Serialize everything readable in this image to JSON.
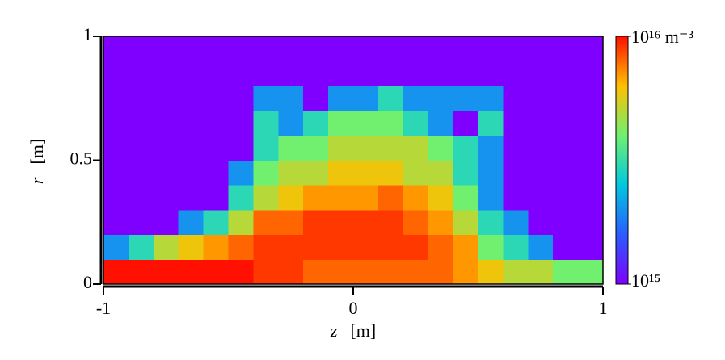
{
  "chart_data": {
    "type": "heatmap",
    "xlabel": {
      "symbol": "z",
      "unit": "[m]"
    },
    "ylabel": {
      "symbol": "r",
      "unit": "[m]"
    },
    "xlim": [
      -1,
      1
    ],
    "xticks": [
      -1,
      0,
      1
    ],
    "ylim": [
      0,
      1
    ],
    "yticks": [
      0,
      0.5,
      1
    ],
    "x": [
      -0.95,
      -0.85,
      -0.75,
      -0.65,
      -0.55,
      -0.45,
      -0.35,
      -0.25,
      -0.15,
      -0.05,
      0.05,
      0.15,
      0.25,
      0.35,
      0.45,
      0.55,
      0.65,
      0.75,
      0.85,
      0.95
    ],
    "y": [
      0.05,
      0.15,
      0.25,
      0.35,
      0.45,
      0.55,
      0.65,
      0.75,
      0.85,
      0.95
    ],
    "z": [
      [
        1e+16,
        1e+16,
        1e+16,
        1e+16,
        1e+16,
        1e+16,
        9000000000000000.0,
        9000000000000000.0,
        8000000000000000.0,
        8000000000000000.0,
        8000000000000000.0,
        8000000000000000.0,
        8000000000000000.0,
        8000000000000000.0,
        7000000000000000.0,
        6000000000000000.0,
        5000000000000000.0,
        5000000000000000.0,
        4000000000000000.0,
        4000000000000000.0
      ],
      [
        2000000000000000.0,
        3000000000000000.0,
        5000000000000000.0,
        6000000000000000.0,
        7000000000000000.0,
        8000000000000000.0,
        9000000000000000.0,
        9000000000000000.0,
        9000000000000000.0,
        9000000000000000.0,
        9000000000000000.0,
        9000000000000000.0,
        9000000000000000.0,
        8000000000000000.0,
        7000000000000000.0,
        4000000000000000.0,
        3000000000000000.0,
        2000000000000000.0,
        1000000000000000.0,
        1000000000000000.0
      ],
      [
        1000000000000000.0,
        1000000000000000.0,
        1000000000000000.0,
        2000000000000000.0,
        3000000000000000.0,
        5000000000000000.0,
        8000000000000000.0,
        8000000000000000.0,
        9000000000000000.0,
        9000000000000000.0,
        9000000000000000.0,
        9000000000000000.0,
        8000000000000000.0,
        7000000000000000.0,
        5000000000000000.0,
        3000000000000000.0,
        2000000000000000.0,
        1000000000000000.0,
        1000000000000000.0,
        1000000000000000.0
      ],
      [
        1000000000000000.0,
        1000000000000000.0,
        1000000000000000.0,
        1000000000000000.0,
        1000000000000000.0,
        3000000000000000.0,
        5000000000000000.0,
        6000000000000000.0,
        7000000000000000.0,
        7000000000000000.0,
        7000000000000000.0,
        8000000000000000.0,
        7000000000000000.0,
        6000000000000000.0,
        4000000000000000.0,
        2000000000000000.0,
        1000000000000000.0,
        1000000000000000.0,
        1000000000000000.0,
        1000000000000000.0
      ],
      [
        1000000000000000.0,
        1000000000000000.0,
        1000000000000000.0,
        1000000000000000.0,
        1000000000000000.0,
        2000000000000000.0,
        4000000000000000.0,
        5000000000000000.0,
        5000000000000000.0,
        6000000000000000.0,
        6000000000000000.0,
        6000000000000000.0,
        5000000000000000.0,
        5000000000000000.0,
        3000000000000000.0,
        2000000000000000.0,
        1000000000000000.0,
        1000000000000000.0,
        1000000000000000.0,
        1000000000000000.0
      ],
      [
        1000000000000000.0,
        1000000000000000.0,
        1000000000000000.0,
        1000000000000000.0,
        1000000000000000.0,
        1000000000000000.0,
        3000000000000000.0,
        4000000000000000.0,
        4000000000000000.0,
        5000000000000000.0,
        5000000000000000.0,
        5000000000000000.0,
        5000000000000000.0,
        4000000000000000.0,
        3000000000000000.0,
        2000000000000000.0,
        1000000000000000.0,
        1000000000000000.0,
        1000000000000000.0,
        1000000000000000.0
      ],
      [
        1000000000000000.0,
        1000000000000000.0,
        1000000000000000.0,
        1000000000000000.0,
        1000000000000000.0,
        1000000000000000.0,
        3000000000000000.0,
        2000000000000000.0,
        3000000000000000.0,
        4000000000000000.0,
        4000000000000000.0,
        4000000000000000.0,
        3000000000000000.0,
        2000000000000000.0,
        1000000000000000.0,
        3000000000000000.0,
        1000000000000000.0,
        1000000000000000.0,
        1000000000000000.0,
        1000000000000000.0
      ],
      [
        1000000000000000.0,
        1000000000000000.0,
        1000000000000000.0,
        1000000000000000.0,
        1000000000000000.0,
        1000000000000000.0,
        2000000000000000.0,
        2000000000000000.0,
        1000000000000000.0,
        2000000000000000.0,
        2000000000000000.0,
        3000000000000000.0,
        2000000000000000.0,
        2000000000000000.0,
        2000000000000000.0,
        2000000000000000.0,
        1000000000000000.0,
        1000000000000000.0,
        1000000000000000.0,
        1000000000000000.0
      ],
      [
        1000000000000000.0,
        1000000000000000.0,
        1000000000000000.0,
        1000000000000000.0,
        1000000000000000.0,
        1000000000000000.0,
        1000000000000000.0,
        1000000000000000.0,
        1000000000000000.0,
        1000000000000000.0,
        1000000000000000.0,
        1000000000000000.0,
        1000000000000000.0,
        1000000000000000.0,
        1000000000000000.0,
        1000000000000000.0,
        1000000000000000.0,
        1000000000000000.0,
        1000000000000000.0,
        1000000000000000.0
      ],
      [
        1000000000000000.0,
        1000000000000000.0,
        1000000000000000.0,
        1000000000000000.0,
        1000000000000000.0,
        1000000000000000.0,
        1000000000000000.0,
        1000000000000000.0,
        1000000000000000.0,
        1000000000000000.0,
        1000000000000000.0,
        1000000000000000.0,
        1000000000000000.0,
        1000000000000000.0,
        1000000000000000.0,
        1000000000000000.0,
        1000000000000000.0,
        1000000000000000.0,
        1000000000000000.0,
        1000000000000000.0
      ]
    ],
    "color_log": true,
    "clim": [
      1000000000000000.0,
      1e+16
    ],
    "cticks": [
      {
        "value": 1000000000000000.0,
        "label": "10¹⁵"
      },
      {
        "value": 1e+16,
        "label": "10¹⁶ m⁻³"
      }
    ],
    "colormap": [
      "#7f00ff",
      "#2a5cff",
      "#00c8e0",
      "#70f070",
      "#ffc000",
      "#ff1000"
    ]
  }
}
